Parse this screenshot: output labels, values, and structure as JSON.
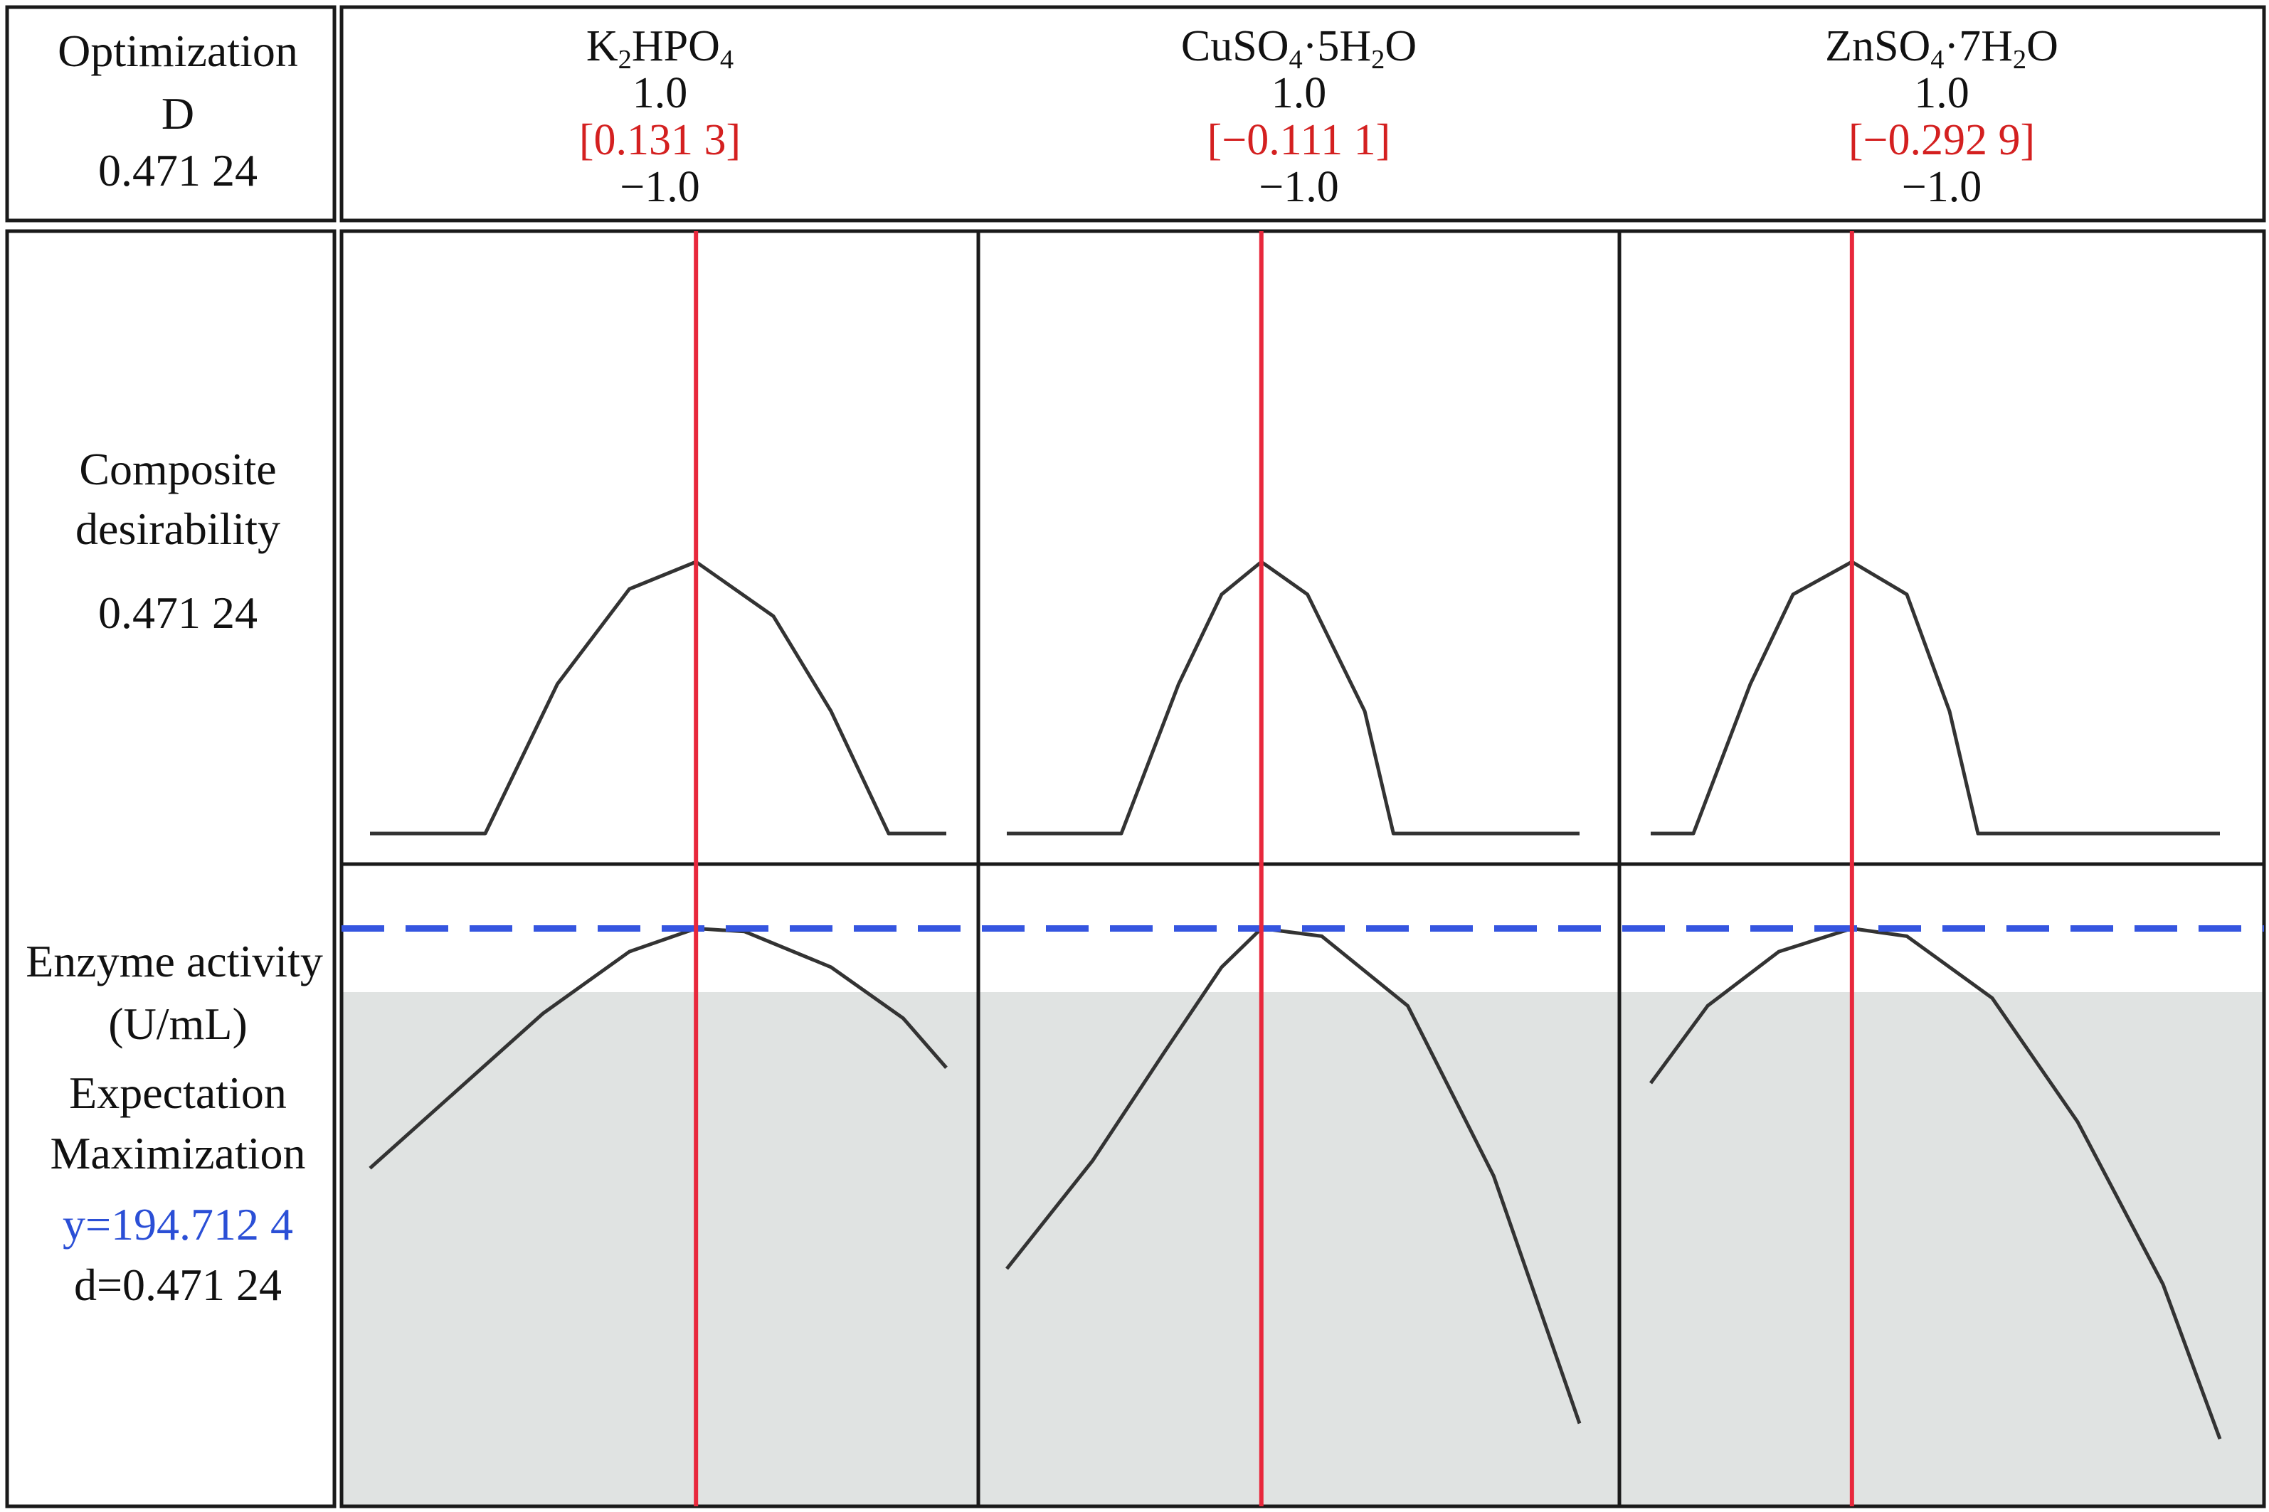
{
  "colors": {
    "border": "#1a1a1a",
    "current_setting_line": "#e8283c",
    "target_line": "#3555e0",
    "target_value_text": "#2b4fd6",
    "setting_value_text": "#d42020",
    "shaded_region": "#e0e3e2",
    "curve": "#333333"
  },
  "header": {
    "optimization_label": "Optimization",
    "d_label": "D",
    "d_value": "0.471 24"
  },
  "left_labels": {
    "composite_line1": "Composite",
    "composite_line2": "desirability",
    "composite_value": "0.471 24",
    "response_line1": "Enzyme activity",
    "response_line2": "(U/mL)",
    "goal_line1": "Expectation",
    "goal_line2": "Maximization",
    "y_value": "y=194.712 4",
    "d_value": "d=0.471 24"
  },
  "chart_data": {
    "type": "line",
    "title": "",
    "factors": [
      {
        "name_parts": [
          [
            "K",
            ""
          ],
          [
            "2",
            "sub"
          ],
          [
            "HPO",
            ""
          ],
          [
            "4",
            "sub"
          ]
        ],
        "high": "1.0",
        "current": "[0.131 3]",
        "low": "−1.0",
        "current_x": 0.1313,
        "desirability_curve": [
          [
            -1.0,
            0.0
          ],
          [
            -0.6,
            0.0
          ],
          [
            -0.35,
            0.55
          ],
          [
            -0.1,
            0.9
          ],
          [
            0.1313,
            1.0
          ],
          [
            0.4,
            0.8
          ],
          [
            0.6,
            0.45
          ],
          [
            0.8,
            0.0
          ],
          [
            1.0,
            0.0
          ]
        ],
        "response_curve": [
          [
            -1.0,
            -0.55
          ],
          [
            -0.7,
            -0.05
          ],
          [
            -0.4,
            0.45
          ],
          [
            -0.1,
            0.85
          ],
          [
            0.1313,
            1.0
          ],
          [
            0.3,
            0.98
          ],
          [
            0.6,
            0.75
          ],
          [
            0.85,
            0.42
          ],
          [
            1.0,
            0.1
          ]
        ]
      },
      {
        "name_parts": [
          [
            "CuSO",
            ""
          ],
          [
            "4",
            "sub"
          ],
          [
            "·5H",
            ""
          ],
          [
            "2",
            "sub"
          ],
          [
            "O",
            ""
          ]
        ],
        "high": "1.0",
        "current": "[−0.111 1]",
        "low": "−1.0",
        "current_x": -0.1111,
        "desirability_curve": [
          [
            -1.0,
            0.0
          ],
          [
            -0.6,
            0.0
          ],
          [
            -0.4,
            0.55
          ],
          [
            -0.25,
            0.88
          ],
          [
            -0.1111,
            1.0
          ],
          [
            0.05,
            0.88
          ],
          [
            0.25,
            0.45
          ],
          [
            0.35,
            0.0
          ],
          [
            1.0,
            0.0
          ]
        ],
        "response_curve": [
          [
            -1.0,
            -1.2
          ],
          [
            -0.7,
            -0.5
          ],
          [
            -0.45,
            0.2
          ],
          [
            -0.25,
            0.75
          ],
          [
            -0.1111,
            1.0
          ],
          [
            0.1,
            0.95
          ],
          [
            0.4,
            0.5
          ],
          [
            0.7,
            -0.6
          ],
          [
            1.0,
            -2.2
          ]
        ]
      },
      {
        "name_parts": [
          [
            "ZnSO",
            ""
          ],
          [
            "4",
            "sub"
          ],
          [
            "·7H",
            ""
          ],
          [
            "2",
            "sub"
          ],
          [
            "O",
            ""
          ]
        ],
        "high": "1.0",
        "current": "[−0.292 9]",
        "low": "−1.0",
        "current_x": -0.2929,
        "desirability_curve": [
          [
            -1.0,
            0.0
          ],
          [
            -0.85,
            0.0
          ],
          [
            -0.65,
            0.55
          ],
          [
            -0.5,
            0.88
          ],
          [
            -0.2929,
            1.0
          ],
          [
            -0.1,
            0.88
          ],
          [
            0.05,
            0.45
          ],
          [
            0.15,
            0.0
          ],
          [
            1.0,
            0.0
          ]
        ],
        "response_curve": [
          [
            -1.0,
            0.0
          ],
          [
            -0.8,
            0.5
          ],
          [
            -0.55,
            0.85
          ],
          [
            -0.2929,
            1.0
          ],
          [
            -0.1,
            0.95
          ],
          [
            0.2,
            0.55
          ],
          [
            0.5,
            -0.25
          ],
          [
            0.8,
            -1.3
          ],
          [
            1.0,
            -2.3
          ]
        ]
      }
    ],
    "desirability_ylim": [
      0,
      1
    ],
    "response_ylim": [
      -2.4,
      1.2
    ],
    "target_level": 1.0,
    "shade_threshold": 0.35,
    "grid": false
  }
}
